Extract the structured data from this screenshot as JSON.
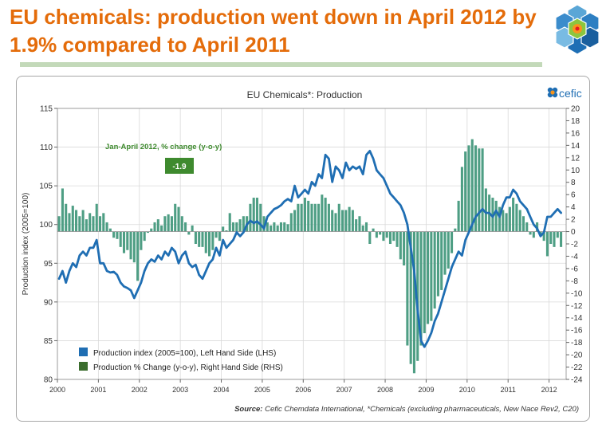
{
  "slide": {
    "title": "EU chemicals: production went down in April 2012 by 1.9% compared to April 2011"
  },
  "logo": {
    "icon": "hexagon-cluster-icon",
    "cefic_text": "cefic",
    "cefic_icon": "cefic-flower-icon"
  },
  "colors": {
    "title": "#e46c0a",
    "line": "#1f6eb3",
    "bar": "#4e9e84",
    "callout": "#3e8a2e",
    "rule": "#c3d9b9"
  },
  "source": {
    "label": "Source:",
    "text": " Cefic Chemdata International, *Chemicals (excluding pharmaceuticals, New Nace Rev2, C20)"
  },
  "chart_data": {
    "type": "line",
    "title": "EU Chemicals*:  Production",
    "ylabel": "Production index (2005=100)",
    "ylim": [
      80,
      115
    ],
    "yticks": [
      80,
      85,
      90,
      95,
      100,
      105,
      110,
      115
    ],
    "y2lim": [
      -24,
      20
    ],
    "y2ticks": [
      20,
      18,
      16,
      14,
      12,
      10,
      8,
      6,
      4,
      2,
      0,
      -2,
      -4,
      -6,
      -8,
      -10,
      -12,
      -14,
      -16,
      -18,
      -20,
      -22,
      -24
    ],
    "xlim": [
      2000,
      2012.4167
    ],
    "xticks": [
      "2000",
      "2001",
      "2002",
      "2003",
      "2004",
      "2005",
      "2006",
      "2007",
      "2008",
      "2009",
      "2010",
      "2011",
      "2012"
    ],
    "grid": true,
    "legend_position": "bottom-left",
    "annotation": {
      "label": "Jan-April 2012, % change (y-o-y)",
      "value": "-1.9"
    },
    "series": [
      {
        "name": "Production index (2005=100),  Left Hand Side (LHS)",
        "type": "line",
        "axis": "left",
        "x_start": "2000-01",
        "step": "month",
        "values": [
          93.0,
          94.0,
          92.5,
          94.0,
          95.0,
          94.5,
          96.0,
          96.5,
          96.0,
          97.0,
          97.0,
          98.0,
          95.0,
          95.0,
          94.0,
          93.8,
          93.9,
          93.5,
          92.5,
          92.0,
          91.8,
          91.5,
          90.5,
          91.5,
          92.5,
          94.0,
          95.0,
          95.5,
          95.2,
          96.0,
          95.5,
          96.5,
          96.0,
          97.0,
          96.5,
          95.0,
          96.0,
          96.5,
          95.0,
          94.5,
          94.8,
          93.5,
          93.0,
          94.0,
          95.0,
          95.5,
          97.0,
          96.0,
          98.0,
          97.0,
          97.5,
          98.0,
          99.0,
          98.5,
          99.0,
          100.0,
          100.5,
          100.2,
          100.4,
          100.0,
          99.5,
          101.0,
          101.5,
          102.0,
          102.2,
          102.5,
          103.0,
          103.3,
          103.0,
          105.0,
          103.5,
          104.0,
          104.5,
          104.0,
          105.5,
          105.0,
          106.5,
          106.0,
          109.0,
          108.5,
          105.5,
          107.5,
          107.0,
          106.0,
          108.0,
          107.0,
          107.5,
          107.2,
          107.5,
          106.5,
          109.0,
          109.5,
          108.5,
          107.0,
          106.5,
          106.0,
          105.0,
          104.0,
          103.5,
          103.0,
          102.5,
          101.5,
          100.0,
          97.0,
          94.0,
          89.0,
          85.0,
          84.2,
          85.0,
          86.0,
          87.5,
          88.5,
          90.0,
          91.5,
          93.0,
          94.5,
          95.5,
          96.5,
          96.0,
          98.0,
          99.0,
          100.0,
          101.0,
          101.5,
          102.0,
          101.5,
          101.5,
          101.0,
          101.8,
          101.0,
          102.5,
          103.5,
          103.5,
          104.5,
          104.0,
          103.0,
          102.5,
          102.0,
          101.0,
          100.0,
          99.5,
          98.5,
          99.0,
          101.0,
          101.0,
          101.5,
          102.0,
          101.5
        ]
      },
      {
        "name": "Production  % Change (y-o-y), Right Hand Side (RHS)",
        "type": "bar",
        "axis": "right",
        "x_start": "2000-01",
        "step": "month",
        "values": [
          2.5,
          7.0,
          4.5,
          3.0,
          4.2,
          3.5,
          2.5,
          3.5,
          2.0,
          3.0,
          2.5,
          4.5,
          2.5,
          3.0,
          1.5,
          0.5,
          -1.0,
          -1.2,
          -2.5,
          -3.5,
          -3.0,
          -4.5,
          -5.0,
          -8.0,
          -3.0,
          -1.5,
          -0.2,
          0.5,
          1.5,
          2.0,
          1.0,
          2.5,
          2.8,
          2.5,
          4.5,
          4.0,
          2.5,
          1.5,
          -0.5,
          1.0,
          -2.0,
          -2.5,
          -2.5,
          -3.5,
          -4.0,
          -3.0,
          -1.0,
          -1.5,
          0.8,
          0.2,
          3.0,
          1.5,
          1.5,
          2.0,
          2.5,
          2.5,
          4.5,
          5.5,
          5.5,
          4.5,
          2.5,
          1.5,
          1.0,
          1.5,
          1.0,
          1.5,
          1.5,
          1.2,
          3.0,
          3.5,
          4.5,
          4.5,
          5.5,
          5.0,
          4.5,
          4.5,
          4.5,
          6.0,
          5.5,
          4.5,
          3.5,
          3.0,
          4.5,
          3.5,
          3.5,
          4.0,
          3.5,
          2.0,
          2.5,
          1.0,
          1.5,
          -2.0,
          0.5,
          -1.0,
          -0.5,
          -1.5,
          -1.0,
          -2.0,
          -1.5,
          -2.5,
          -4.5,
          -5.5,
          -18.5,
          -21.5,
          -23.0,
          -21.0,
          -18.5,
          -16.5,
          -15.0,
          -14.5,
          -12.5,
          -10.5,
          -9.5,
          -7.0,
          -6.0,
          -3.5,
          0.5,
          5.0,
          10.5,
          13.0,
          14.0,
          15.0,
          14.0,
          13.5,
          13.5,
          7.0,
          6.0,
          5.5,
          5.0,
          4.0,
          3.5,
          3.0,
          4.0,
          5.5,
          4.5,
          3.5,
          2.5,
          1.5,
          -0.5,
          -1.0,
          1.5,
          -0.5,
          -1.5,
          -4.0,
          -2.0,
          -2.5,
          -1.0,
          -2.5
        ]
      }
    ]
  },
  "legend": {
    "line_label": "Production index (2005=100),  Left Hand Side (LHS)",
    "bar_label": "Production  % Change (y-o-y), Right Hand Side (RHS)"
  }
}
